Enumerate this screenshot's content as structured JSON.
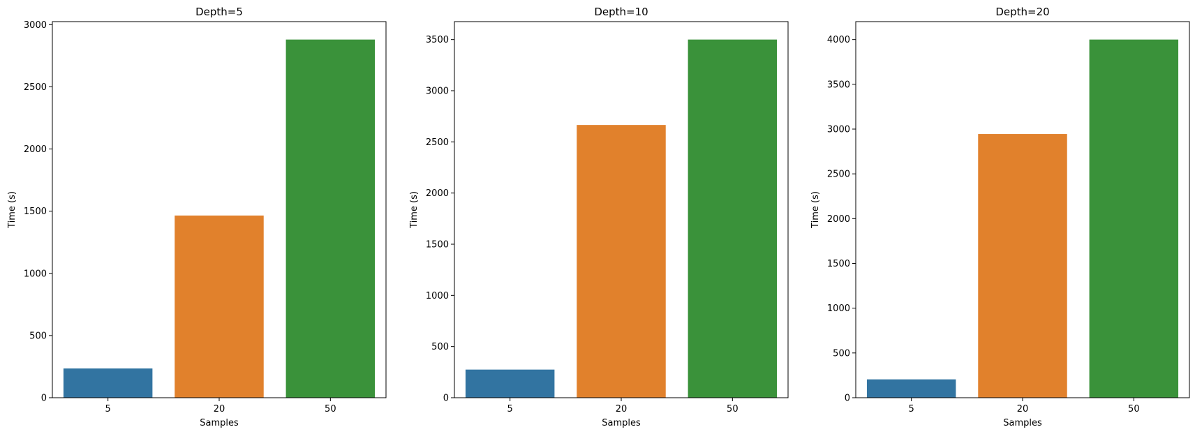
{
  "chart_data": [
    {
      "type": "bar",
      "title": "Depth=5",
      "xlabel": "Samples",
      "ylabel": "Time (s)",
      "categories": [
        "5",
        "20",
        "50"
      ],
      "values": [
        235,
        1465,
        2880
      ],
      "ylim": [
        0,
        3024
      ],
      "yticks": [
        0,
        500,
        1000,
        1500,
        2000,
        2500,
        3000
      ],
      "colors": [
        "#3274a1",
        "#e1812c",
        "#3a923a"
      ],
      "grid": false
    },
    {
      "type": "bar",
      "title": "Depth=10",
      "xlabel": "Samples",
      "ylabel": "Time (s)",
      "categories": [
        "5",
        "20",
        "50"
      ],
      "values": [
        275,
        2665,
        3500
      ],
      "ylim": [
        0,
        3675
      ],
      "yticks": [
        0,
        500,
        1000,
        1500,
        2000,
        2500,
        3000,
        3500
      ],
      "colors": [
        "#3274a1",
        "#e1812c",
        "#3a923a"
      ],
      "grid": false
    },
    {
      "type": "bar",
      "title": "Depth=20",
      "xlabel": "Samples",
      "ylabel": "Time (s)",
      "categories": [
        "5",
        "20",
        "50"
      ],
      "values": [
        205,
        2945,
        4000
      ],
      "ylim": [
        0,
        4200
      ],
      "yticks": [
        0,
        500,
        1000,
        1500,
        2000,
        2500,
        3000,
        3500,
        4000
      ],
      "colors": [
        "#3274a1",
        "#e1812c",
        "#3a923a"
      ],
      "grid": false
    }
  ]
}
